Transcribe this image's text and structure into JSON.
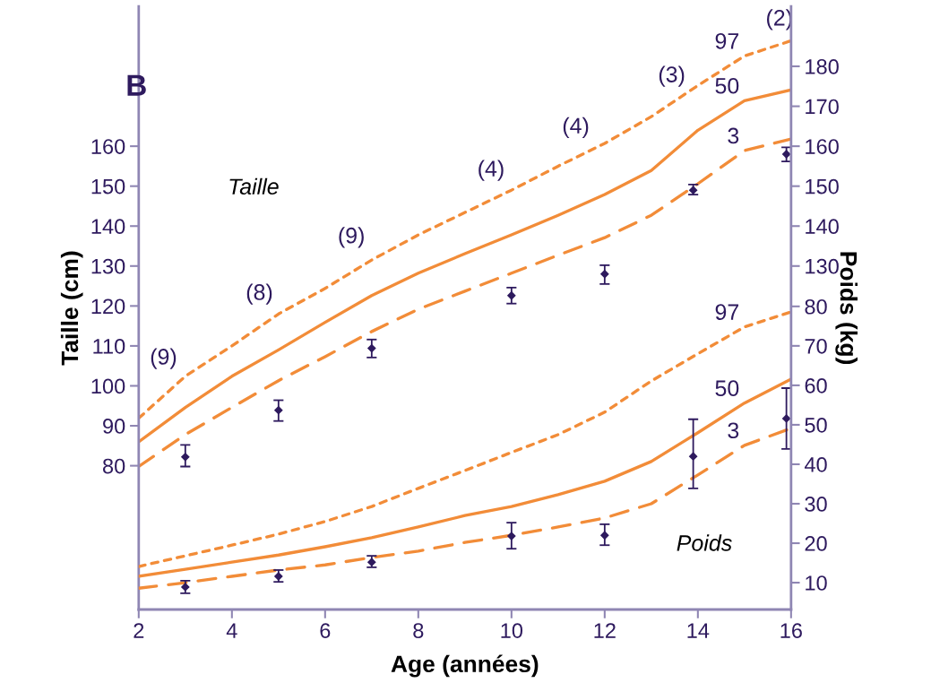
{
  "chart_data": {
    "type": "line",
    "title": "B",
    "xlabel": "Age (années)",
    "ylabel": "Taille (cm)",
    "y2label": "Poids (kg)",
    "x": [
      2,
      3,
      4,
      5,
      6,
      7,
      8,
      9,
      10,
      11,
      12,
      13,
      14,
      15,
      16
    ],
    "xlim": [
      2,
      16
    ],
    "xticks": [
      2,
      4,
      6,
      8,
      10,
      12,
      14,
      16
    ],
    "ylim": [
      44,
      195
    ],
    "yticks": [
      80,
      90,
      100,
      110,
      120,
      130,
      140,
      150,
      160
    ],
    "y2lim": [
      3.2,
      156
    ],
    "y2ticks": [
      10,
      20,
      30,
      40,
      50,
      60,
      70,
      80
    ],
    "y3lim": [
      44,
      195
    ],
    "y3ticks": [
      130,
      140,
      150,
      160,
      170,
      180
    ],
    "grid": false,
    "series": [
      {
        "name": "97",
        "axis": "y",
        "line_style": "dotted",
        "color": "#f28c38",
        "values": [
          91.9,
          102.4,
          110,
          118,
          124.4,
          131.5,
          137.8,
          143.4,
          149,
          155,
          160.7,
          167.4,
          175.2,
          182.6,
          186.4
        ]
      },
      {
        "name": "50",
        "axis": "y",
        "line_style": "solid",
        "color": "#f28c38",
        "values": [
          86,
          94.6,
          102.4,
          109,
          115.9,
          122.6,
          128.2,
          133.1,
          137.8,
          142.7,
          147.9,
          153.9,
          164,
          171.4,
          174.1
        ]
      },
      {
        "name": "3",
        "axis": "y",
        "line_style": "dashed",
        "color": "#f28c38",
        "values": [
          79.8,
          87.8,
          94.6,
          101.3,
          107.3,
          113.6,
          119.2,
          123.7,
          128.2,
          132.7,
          137.1,
          142.7,
          150.6,
          158.9,
          161.8
        ]
      },
      {
        "type": "scatter",
        "axis": "y",
        "marker": "diamond",
        "color": "#2e1a5e",
        "x": [
          3,
          5,
          7,
          10,
          12,
          13.9,
          15.9
        ],
        "values": [
          82.2,
          93.9,
          109.4,
          122.6,
          128,
          149,
          158
        ],
        "errors": [
          [
            79.8,
            85.2
          ],
          [
            91.2,
            96.4
          ],
          [
            107.1,
            111.6
          ],
          [
            120.6,
            124.6
          ],
          [
            125.5,
            130.2
          ],
          [
            147.9,
            150.4
          ],
          [
            156.2,
            159.7
          ]
        ]
      },
      {
        "name": "97",
        "axis": "y2",
        "line_style": "dotted",
        "color": "#f28c38",
        "values": [
          14.1,
          16.8,
          19.5,
          22.3,
          25.5,
          29.3,
          33.9,
          38.4,
          43,
          47.5,
          53.2,
          61.1,
          68,
          74.8,
          78.6
        ]
      },
      {
        "name": "50",
        "axis": "y2",
        "line_style": "solid",
        "color": "#f28c38",
        "values": [
          11.6,
          13.4,
          15.2,
          17,
          19.1,
          21.4,
          24.1,
          27,
          29.3,
          32.3,
          35.7,
          40.7,
          48,
          55.5,
          61.6
        ]
      },
      {
        "name": "3",
        "axis": "y2",
        "line_style": "dashed",
        "color": "#f28c38",
        "values": [
          8.6,
          10,
          11.6,
          13.2,
          14.5,
          16.4,
          18,
          20.2,
          22,
          24.1,
          26.4,
          30,
          37.3,
          44.8,
          49.1
        ]
      },
      {
        "type": "scatter",
        "axis": "y2",
        "marker": "diamond",
        "color": "#2e1a5e",
        "x": [
          3,
          5,
          7,
          10,
          12,
          13.9,
          15.9
        ],
        "values": [
          8.9,
          11.6,
          15.2,
          21.8,
          22,
          42,
          51.6
        ],
        "errors": [
          [
            7.3,
            10.5
          ],
          [
            10.2,
            13.2
          ],
          [
            13.9,
            16.8
          ],
          [
            18.6,
            25.2
          ],
          [
            19.5,
            24.8
          ],
          [
            33.9,
            51.4
          ],
          [
            43.9,
            59.3
          ]
        ]
      }
    ],
    "annotations": [
      "Taille",
      "Poids",
      "(9)",
      "(8)",
      "(9)",
      "(4)",
      "(4)",
      "(3)",
      "(2)"
    ]
  }
}
